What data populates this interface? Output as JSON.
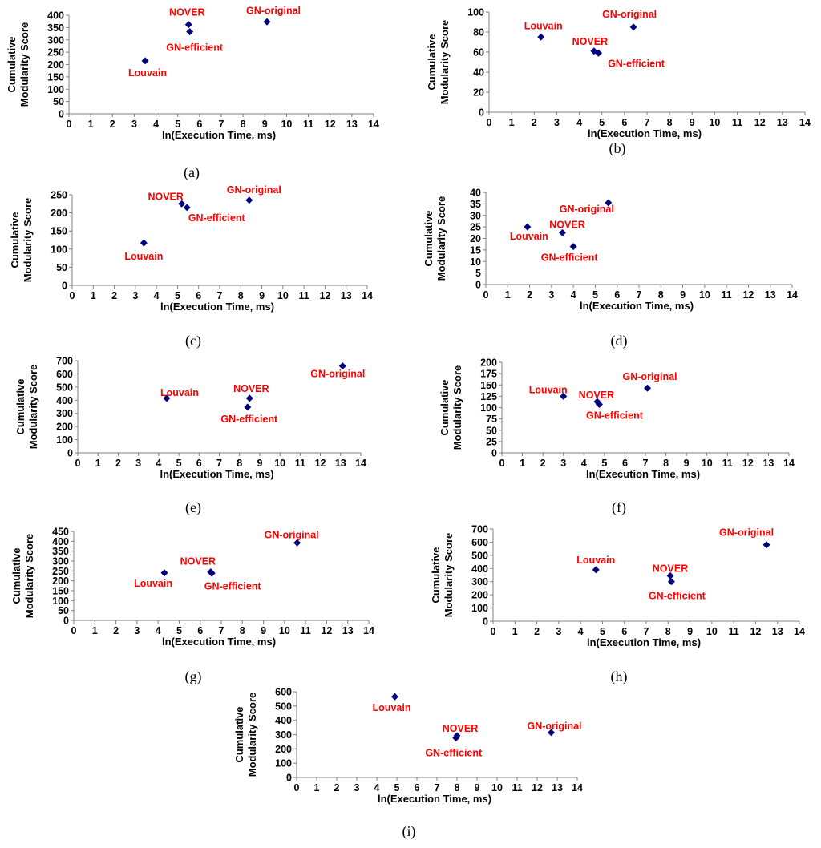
{
  "colors": {
    "marker": "#00007f",
    "label": "#ff0000",
    "axis": "#808080"
  },
  "chart_data": [
    {
      "type": "scatter",
      "panel": "a",
      "caption": "(a)",
      "xlabel": "ln(Execution Time, ms)",
      "ylabel": [
        "Cumulative",
        "Modularity Score"
      ],
      "xlim": [
        0,
        14
      ],
      "xticks": [
        0,
        1,
        2,
        3,
        4,
        5,
        6,
        7,
        8,
        9,
        10,
        11,
        12,
        13,
        14
      ],
      "ylim": [
        0,
        400
      ],
      "yticks": [
        0,
        50,
        100,
        150,
        200,
        250,
        300,
        350,
        400
      ],
      "points": [
        {
          "name": "Louvain",
          "x": 3.5,
          "y": 215
        },
        {
          "name": "NOVER",
          "x": 5.5,
          "y": 362
        },
        {
          "name": "GN-efficient",
          "x": 5.55,
          "y": 333
        },
        {
          "name": "GN-original",
          "x": 9.1,
          "y": 373
        }
      ]
    },
    {
      "type": "scatter",
      "panel": "b",
      "caption": "(b)",
      "xlabel": "ln(Execution Time, ms)",
      "ylabel": [
        "Cumulative",
        "Modularity Score"
      ],
      "xlim": [
        0,
        14
      ],
      "xticks": [
        0,
        1,
        2,
        3,
        4,
        5,
        6,
        7,
        8,
        9,
        10,
        11,
        12,
        13,
        14
      ],
      "ylim": [
        0,
        100
      ],
      "yticks": [
        0,
        20,
        40,
        60,
        80,
        100
      ],
      "points": [
        {
          "name": "Louvain",
          "x": 2.3,
          "y": 75
        },
        {
          "name": "NOVER",
          "x": 4.65,
          "y": 61
        },
        {
          "name": "GN-efficient",
          "x": 4.85,
          "y": 59
        },
        {
          "name": "GN-original",
          "x": 6.4,
          "y": 85
        }
      ]
    },
    {
      "type": "scatter",
      "panel": "c",
      "caption": "(c)",
      "xlabel": "ln(Execution Time, ms)",
      "ylabel": [
        "Cumulative",
        "Modularity Score"
      ],
      "xlim": [
        0,
        14
      ],
      "xticks": [
        0,
        1,
        2,
        3,
        4,
        5,
        6,
        7,
        8,
        9,
        10,
        11,
        12,
        13,
        14
      ],
      "ylim": [
        0,
        250
      ],
      "yticks": [
        0,
        50,
        100,
        150,
        200,
        250
      ],
      "points": [
        {
          "name": "Louvain",
          "x": 3.4,
          "y": 117
        },
        {
          "name": "NOVER",
          "x": 5.2,
          "y": 225
        },
        {
          "name": "GN-efficient",
          "x": 5.45,
          "y": 215
        },
        {
          "name": "GN-original",
          "x": 8.4,
          "y": 235
        }
      ]
    },
    {
      "type": "scatter",
      "panel": "d",
      "caption": "(d)",
      "xlabel": "ln(Execution Time, ms)",
      "ylabel": [
        "Cumulative",
        "Modularity Score"
      ],
      "xlim": [
        0,
        14
      ],
      "xticks": [
        0,
        1,
        2,
        3,
        4,
        5,
        6,
        7,
        8,
        9,
        10,
        11,
        12,
        13,
        14
      ],
      "ylim": [
        0,
        40
      ],
      "yticks": [
        0,
        5,
        10,
        15,
        20,
        25,
        30,
        35,
        40
      ],
      "points": [
        {
          "name": "Louvain",
          "x": 1.9,
          "y": 25
        },
        {
          "name": "NOVER",
          "x": 3.5,
          "y": 22.5
        },
        {
          "name": "GN-efficient",
          "x": 4.0,
          "y": 16.5
        },
        {
          "name": "GN-original",
          "x": 5.6,
          "y": 35.5
        }
      ]
    },
    {
      "type": "scatter",
      "panel": "e",
      "caption": "(e)",
      "xlabel": "ln(Execution Time, ms)",
      "ylabel": [
        "Cumulative",
        "Modularity Score"
      ],
      "xlim": [
        0,
        14
      ],
      "xticks": [
        0,
        1,
        2,
        3,
        4,
        5,
        6,
        7,
        8,
        9,
        10,
        11,
        12,
        13,
        14
      ],
      "ylim": [
        0,
        700
      ],
      "yticks": [
        0,
        100,
        200,
        300,
        400,
        500,
        600,
        700
      ],
      "points": [
        {
          "name": "Louvain",
          "x": 4.4,
          "y": 415
        },
        {
          "name": "NOVER",
          "x": 8.5,
          "y": 415
        },
        {
          "name": "GN-efficient",
          "x": 8.4,
          "y": 348
        },
        {
          "name": "GN-original",
          "x": 13.1,
          "y": 660
        }
      ]
    },
    {
      "type": "scatter",
      "panel": "f",
      "caption": "(f)",
      "xlabel": "ln(Execution Time, ms)",
      "ylabel": [
        "Cumulative",
        "Modularity Score"
      ],
      "xlim": [
        0,
        14
      ],
      "xticks": [
        0,
        1,
        2,
        3,
        4,
        5,
        6,
        7,
        8,
        9,
        10,
        11,
        12,
        13,
        14
      ],
      "ylim": [
        0,
        200
      ],
      "yticks": [
        0,
        25,
        50,
        75,
        100,
        125,
        150,
        175,
        200
      ],
      "points": [
        {
          "name": "Louvain",
          "x": 3.0,
          "y": 125
        },
        {
          "name": "NOVER",
          "x": 4.65,
          "y": 113
        },
        {
          "name": "GN-efficient",
          "x": 4.75,
          "y": 107
        },
        {
          "name": "GN-original",
          "x": 7.1,
          "y": 143
        }
      ]
    },
    {
      "type": "scatter",
      "panel": "g",
      "caption": "(g)",
      "xlabel": "ln(Execution Time, ms)",
      "ylabel": [
        "Cumulative",
        "Modularity Score"
      ],
      "xlim": [
        0,
        14
      ],
      "xticks": [
        0,
        1,
        2,
        3,
        4,
        5,
        6,
        7,
        8,
        9,
        10,
        11,
        12,
        13,
        14
      ],
      "ylim": [
        0,
        450
      ],
      "yticks": [
        0,
        50,
        100,
        150,
        200,
        250,
        300,
        350,
        400,
        450
      ],
      "points": [
        {
          "name": "Louvain",
          "x": 4.3,
          "y": 240
        },
        {
          "name": "NOVER",
          "x": 6.5,
          "y": 245
        },
        {
          "name": "GN-efficient",
          "x": 6.55,
          "y": 238
        },
        {
          "name": "GN-original",
          "x": 10.6,
          "y": 392
        }
      ]
    },
    {
      "type": "scatter",
      "panel": "h",
      "caption": "(h)",
      "xlabel": "ln(Execution Time, ms)",
      "ylabel": [
        "Cumulative",
        "Modularity Score"
      ],
      "xlim": [
        0,
        14
      ],
      "xticks": [
        0,
        1,
        2,
        3,
        4,
        5,
        6,
        7,
        8,
        9,
        10,
        11,
        12,
        13,
        14
      ],
      "ylim": [
        0,
        700
      ],
      "yticks": [
        0,
        100,
        200,
        300,
        400,
        500,
        600,
        700
      ],
      "points": [
        {
          "name": "Louvain",
          "x": 4.7,
          "y": 390
        },
        {
          "name": "NOVER",
          "x": 8.1,
          "y": 345
        },
        {
          "name": "GN-efficient",
          "x": 8.15,
          "y": 300
        },
        {
          "name": "GN-original",
          "x": 12.5,
          "y": 580
        }
      ]
    },
    {
      "type": "scatter",
      "panel": "i",
      "caption": "(i)",
      "xlabel": "ln(Execution Time, ms)",
      "ylabel": [
        "Cumulative",
        "Modularity Score"
      ],
      "xlim": [
        0,
        14
      ],
      "xticks": [
        0,
        1,
        2,
        3,
        4,
        5,
        6,
        7,
        8,
        9,
        10,
        11,
        12,
        13,
        14
      ],
      "ylim": [
        0,
        600
      ],
      "yticks": [
        0,
        100,
        200,
        300,
        400,
        500,
        600
      ],
      "points": [
        {
          "name": "Louvain",
          "x": 4.9,
          "y": 565
        },
        {
          "name": "NOVER",
          "x": 8.0,
          "y": 292
        },
        {
          "name": "GN-efficient",
          "x": 7.95,
          "y": 277
        },
        {
          "name": "GN-original",
          "x": 12.7,
          "y": 315
        }
      ]
    }
  ]
}
